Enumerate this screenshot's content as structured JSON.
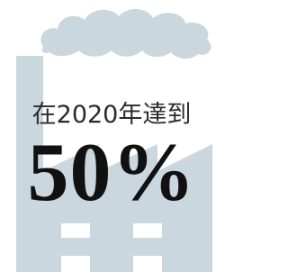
{
  "caption": "在2020年達到",
  "headline": "50%"
}
